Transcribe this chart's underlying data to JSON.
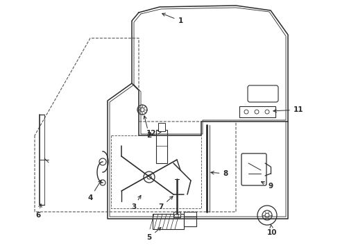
{
  "bg_color": "#ffffff",
  "line_color": "#2a2a2a",
  "dash_color": "#555555",
  "lw_main": 1.1,
  "lw_thin": 0.6,
  "lw_dash": 0.8,
  "font_size": 7.5
}
